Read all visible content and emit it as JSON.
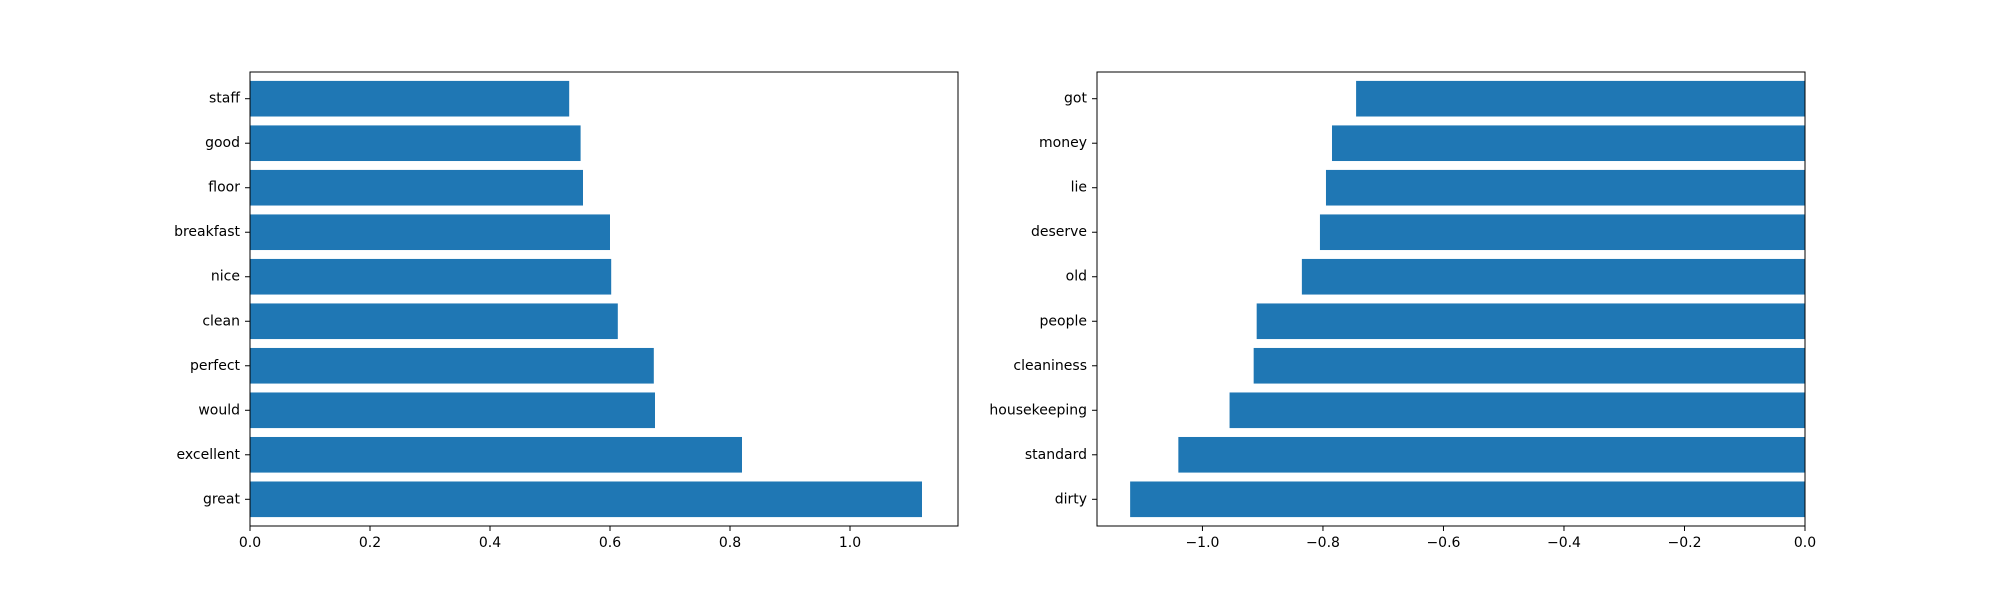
{
  "chart_data": [
    {
      "type": "bar",
      "orientation": "horizontal",
      "categories": [
        "great",
        "excellent",
        "would",
        "perfect",
        "clean",
        "nice",
        "breakfast",
        "floor",
        "good",
        "staff"
      ],
      "values": [
        1.12,
        0.82,
        0.675,
        0.673,
        0.613,
        0.602,
        0.6,
        0.555,
        0.551,
        0.532
      ],
      "xlim": [
        0,
        1.18
      ],
      "xticks": [
        0.0,
        0.2,
        0.4,
        0.6,
        0.8,
        1.0
      ],
      "xtick_labels": [
        "0.0",
        "0.2",
        "0.4",
        "0.6",
        "0.8",
        "1.0"
      ],
      "title": "",
      "xlabel": "",
      "ylabel": "",
      "grid": false,
      "bar_color": "#1f77b4"
    },
    {
      "type": "bar",
      "orientation": "horizontal",
      "categories": [
        "dirty",
        "standard",
        "housekeeping",
        "cleaniness",
        "people",
        "old",
        "deserve",
        "lie",
        "money",
        "got"
      ],
      "values": [
        -1.12,
        -1.04,
        -0.955,
        -0.915,
        -0.91,
        -0.835,
        -0.805,
        -0.795,
        -0.785,
        -0.745
      ],
      "xlim": [
        -1.175,
        0
      ],
      "xticks": [
        -1.0,
        -0.8,
        -0.6,
        -0.4,
        -0.2,
        0.0
      ],
      "xtick_labels": [
        "−1.0",
        "−0.8",
        "−0.6",
        "−0.4",
        "−0.2",
        "0.0"
      ],
      "title": "",
      "xlabel": "",
      "ylabel": "",
      "grid": false,
      "bar_color": "#1f77b4"
    }
  ]
}
